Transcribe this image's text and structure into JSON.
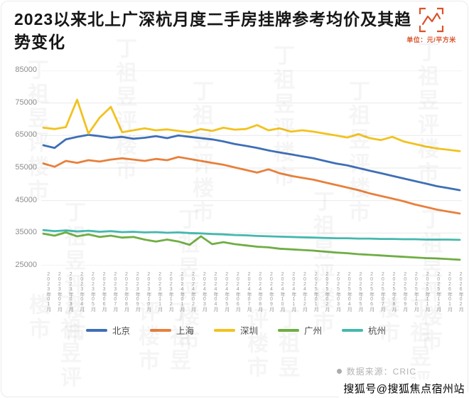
{
  "card": {
    "unit_label": "单位：元/平方米",
    "source_label": "数据来源：CRIC",
    "watermark": "丁祖昱评楼市",
    "footer_badge": "搜狐号@搜狐焦点宿州站"
  },
  "chart_data": {
    "type": "line",
    "title": "2023以来北上广深杭月度二手房挂牌参考均价及其趋势变化",
    "xlabel": "",
    "ylabel": "元/平方米",
    "ylim": [
      25000,
      85000
    ],
    "yticks": [
      85000,
      75000,
      65000,
      55000,
      45000,
      35000,
      25000
    ],
    "grid": true,
    "legend_position": "bottom",
    "categories": [
      "2023年01月",
      "2023年02月",
      "2023年03月",
      "2023年04月",
      "2023年05月",
      "2023年06月",
      "2023年07月",
      "2023年08月",
      "2023年09月",
      "2023年10月",
      "2023年11月",
      "2023年12月",
      "2024年01月",
      "2024年02月",
      "2024年03月",
      "2024年04月",
      "2024年05月",
      "2024年06月",
      "2024年07月",
      "2024年08月",
      "2024年09月",
      "2024年10月",
      "2024年11月",
      "2024年12月",
      "2025年01月",
      "2025年02月",
      "2025年03月",
      "2025年04月",
      "2025年05月",
      "2025年06月",
      "2025年07月",
      "2025年08月",
      "2025年09月",
      "2025年10月",
      "2025年11月",
      "2025年12月",
      "2026年01月",
      "2026年02月"
    ],
    "series": [
      {
        "name": "北京",
        "color": "#3e6fb5",
        "values": [
          62000,
          61200,
          63800,
          64600,
          65200,
          64800,
          64300,
          64600,
          64000,
          64300,
          64800,
          64200,
          65000,
          64600,
          64200,
          63800,
          63200,
          62400,
          61800,
          61200,
          60400,
          59800,
          59200,
          58600,
          58000,
          57200,
          56400,
          55800,
          55000,
          54200,
          53400,
          52600,
          51800,
          51000,
          50200,
          49400,
          48800,
          48200
        ]
      },
      {
        "name": "上海",
        "color": "#e8803c",
        "values": [
          56400,
          55400,
          57200,
          56600,
          57400,
          57000,
          57600,
          58000,
          57600,
          57200,
          57800,
          57400,
          58400,
          57800,
          57200,
          56600,
          56000,
          55200,
          54400,
          53600,
          54600,
          53400,
          52600,
          52000,
          51400,
          50600,
          49800,
          49000,
          48200,
          47200,
          46400,
          45600,
          44800,
          43800,
          43000,
          42200,
          41600,
          41000
        ]
      },
      {
        "name": "深圳",
        "color": "#f2c21f",
        "values": [
          67400,
          67000,
          67600,
          76000,
          65600,
          70500,
          73800,
          66000,
          66600,
          67200,
          66600,
          66900,
          66400,
          66000,
          67000,
          66400,
          67400,
          66800,
          67000,
          68200,
          66600,
          67200,
          66200,
          66600,
          66200,
          65600,
          65000,
          64400,
          65400,
          64200,
          63600,
          64600,
          63200,
          62400,
          61600,
          61000,
          60600,
          60200
        ]
      },
      {
        "name": "广州",
        "color": "#6fae44",
        "values": [
          34800,
          34200,
          35200,
          34000,
          34600,
          33800,
          34200,
          33600,
          33800,
          33000,
          32400,
          33000,
          32400,
          31400,
          34000,
          31600,
          32200,
          31600,
          31200,
          30800,
          30600,
          30200,
          30000,
          29800,
          29600,
          29300,
          29000,
          28800,
          28500,
          28300,
          28100,
          27900,
          27700,
          27500,
          27300,
          27200,
          27000,
          26800
        ]
      },
      {
        "name": "杭州",
        "color": "#45b8ae",
        "values": [
          35900,
          35600,
          35800,
          35500,
          35700,
          35400,
          35600,
          35300,
          35400,
          35200,
          35300,
          35100,
          35200,
          35000,
          34900,
          34700,
          34600,
          34400,
          34300,
          34100,
          34000,
          33900,
          33800,
          33700,
          33600,
          33500,
          33400,
          33400,
          33300,
          33300,
          33200,
          33200,
          33100,
          33100,
          33000,
          33000,
          33000,
          32900
        ]
      }
    ]
  }
}
